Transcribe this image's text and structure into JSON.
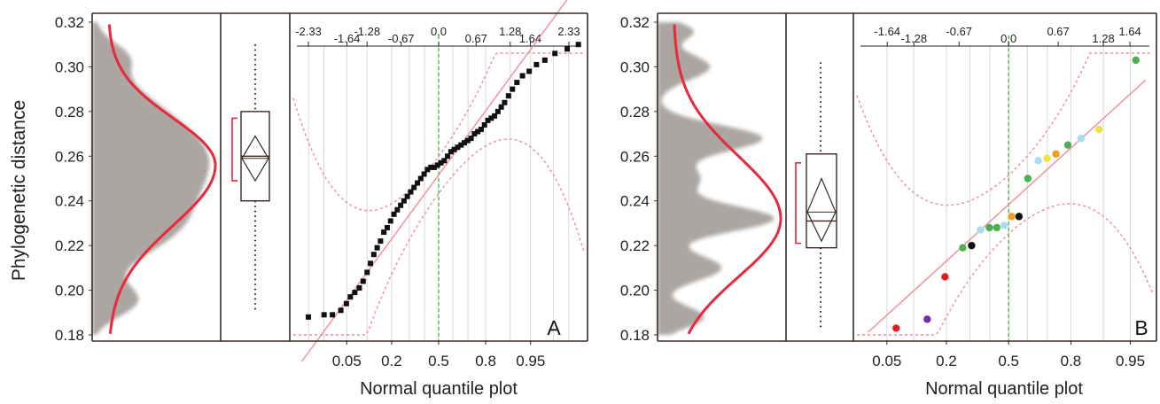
{
  "figure": {
    "y_axis_label": "Phylogenetic distance",
    "x_axis_label": "Normal quantile plot",
    "y_ticks": [
      "0.32",
      "0.30",
      "0.28",
      "0.26",
      "0.24",
      "0.22",
      "0.20",
      "0.18"
    ]
  },
  "colors": {
    "density_fill": "#a8a29e",
    "density_curve": "#e8283c",
    "frame": "#3a2a22",
    "ref_line": "#f08c96",
    "mean_line": "#3aa83a",
    "points_A": "#111111",
    "grid": "#d8d8d8"
  },
  "chart_data": [
    {
      "panel": "A",
      "type": "scatter",
      "panel_label": "A",
      "title": "",
      "ylabel": "Phylogenetic distance",
      "xlabel": "Normal quantile plot",
      "ylim": [
        0.18,
        0.32
      ],
      "bottom_prob_ticks": [
        "0.05",
        "0.2",
        "0.5",
        "0.8",
        "0.95"
      ],
      "top_z_ticks": [
        "-2.33",
        "-1.64",
        "-1.28",
        "-0.67",
        "0.0",
        "0.67",
        "1.28",
        "1.64",
        "2.33"
      ],
      "boxplot": {
        "q1": 0.24,
        "median": 0.26,
        "q3": 0.28,
        "whisker_low": 0.19,
        "whisker_high": 0.31,
        "mean": 0.259,
        "mean_ci": [
          0.249,
          0.269
        ],
        "shortest_half": [
          0.249,
          0.277
        ]
      },
      "density_curve": {
        "mode": 0.256
      },
      "points": [
        {
          "z": -2.33,
          "y": 0.188
        },
        {
          "z": -2.05,
          "y": 0.189
        },
        {
          "z": -1.9,
          "y": 0.189
        },
        {
          "z": -1.75,
          "y": 0.191
        },
        {
          "z": -1.65,
          "y": 0.194
        },
        {
          "z": -1.58,
          "y": 0.197
        },
        {
          "z": -1.5,
          "y": 0.199
        },
        {
          "z": -1.42,
          "y": 0.201
        },
        {
          "z": -1.35,
          "y": 0.204
        },
        {
          "z": -1.28,
          "y": 0.208
        },
        {
          "z": -1.22,
          "y": 0.212
        },
        {
          "z": -1.16,
          "y": 0.216
        },
        {
          "z": -1.1,
          "y": 0.219
        },
        {
          "z": -1.04,
          "y": 0.222
        },
        {
          "z": -0.98,
          "y": 0.226
        },
        {
          "z": -0.92,
          "y": 0.228
        },
        {
          "z": -0.86,
          "y": 0.231
        },
        {
          "z": -0.8,
          "y": 0.234
        },
        {
          "z": -0.74,
          "y": 0.236
        },
        {
          "z": -0.68,
          "y": 0.238
        },
        {
          "z": -0.62,
          "y": 0.24
        },
        {
          "z": -0.56,
          "y": 0.242
        },
        {
          "z": -0.5,
          "y": 0.244
        },
        {
          "z": -0.44,
          "y": 0.246
        },
        {
          "z": -0.38,
          "y": 0.248
        },
        {
          "z": -0.32,
          "y": 0.25
        },
        {
          "z": -0.26,
          "y": 0.252
        },
        {
          "z": -0.2,
          "y": 0.254
        },
        {
          "z": -0.14,
          "y": 0.255
        },
        {
          "z": -0.08,
          "y": 0.255
        },
        {
          "z": -0.02,
          "y": 0.256
        },
        {
          "z": 0.04,
          "y": 0.257
        },
        {
          "z": 0.1,
          "y": 0.258
        },
        {
          "z": 0.16,
          "y": 0.26
        },
        {
          "z": 0.22,
          "y": 0.262
        },
        {
          "z": 0.28,
          "y": 0.263
        },
        {
          "z": 0.34,
          "y": 0.264
        },
        {
          "z": 0.4,
          "y": 0.265
        },
        {
          "z": 0.46,
          "y": 0.266
        },
        {
          "z": 0.52,
          "y": 0.267
        },
        {
          "z": 0.58,
          "y": 0.268
        },
        {
          "z": 0.64,
          "y": 0.27
        },
        {
          "z": 0.7,
          "y": 0.271
        },
        {
          "z": 0.76,
          "y": 0.272
        },
        {
          "z": 0.82,
          "y": 0.274
        },
        {
          "z": 0.88,
          "y": 0.276
        },
        {
          "z": 0.94,
          "y": 0.277
        },
        {
          "z": 1.0,
          "y": 0.278
        },
        {
          "z": 1.06,
          "y": 0.28
        },
        {
          "z": 1.12,
          "y": 0.282
        },
        {
          "z": 1.18,
          "y": 0.284
        },
        {
          "z": 1.25,
          "y": 0.287
        },
        {
          "z": 1.32,
          "y": 0.29
        },
        {
          "z": 1.4,
          "y": 0.293
        },
        {
          "z": 1.5,
          "y": 0.296
        },
        {
          "z": 1.62,
          "y": 0.298
        },
        {
          "z": 1.75,
          "y": 0.301
        },
        {
          "z": 1.9,
          "y": 0.303
        },
        {
          "z": 2.08,
          "y": 0.306
        },
        {
          "z": 2.3,
          "y": 0.308
        },
        {
          "z": 2.5,
          "y": 0.31
        }
      ]
    },
    {
      "panel": "B",
      "type": "scatter",
      "panel_label": "B",
      "title": "",
      "ylabel": "Phylogenetic distance",
      "xlabel": "Normal quantile plot",
      "ylim": [
        0.18,
        0.32
      ],
      "bottom_prob_ticks": [
        "0.05",
        "0.2",
        "0.5",
        "0.8",
        "0.95"
      ],
      "top_z_ticks": [
        "-1.64",
        "-1.28",
        "-0.67",
        "0.0",
        "0.67",
        "1.28",
        "1.64"
      ],
      "boxplot": {
        "q1": 0.219,
        "median": 0.231,
        "q3": 0.261,
        "whisker_low": 0.182,
        "whisker_high": 0.302,
        "mean": 0.235,
        "mean_ci": [
          0.222,
          0.25
        ],
        "shortest_half": [
          0.221,
          0.257
        ]
      },
      "density_curve": {
        "mode": 0.232
      },
      "points": [
        {
          "z": -1.52,
          "y": 0.183,
          "color": "#e02020"
        },
        {
          "z": -1.1,
          "y": 0.187,
          "color": "#7030a0"
        },
        {
          "z": -0.86,
          "y": 0.206,
          "color": "#e02020"
        },
        {
          "z": -0.62,
          "y": 0.219,
          "color": "#4caf50"
        },
        {
          "z": -0.5,
          "y": 0.22,
          "color": "#111111"
        },
        {
          "z": -0.38,
          "y": 0.227,
          "color": "#a8dcf0"
        },
        {
          "z": -0.26,
          "y": 0.228,
          "color": "#4caf50"
        },
        {
          "z": -0.16,
          "y": 0.228,
          "color": "#4caf50"
        },
        {
          "z": -0.06,
          "y": 0.229,
          "color": "#a8dcf0"
        },
        {
          "z": 0.04,
          "y": 0.233,
          "color": "#f0a020"
        },
        {
          "z": 0.14,
          "y": 0.233,
          "color": "#111111"
        },
        {
          "z": 0.26,
          "y": 0.25,
          "color": "#4caf50"
        },
        {
          "z": 0.4,
          "y": 0.258,
          "color": "#a8dcf0"
        },
        {
          "z": 0.52,
          "y": 0.259,
          "color": "#f0e040"
        },
        {
          "z": 0.64,
          "y": 0.261,
          "color": "#f0a020"
        },
        {
          "z": 0.8,
          "y": 0.265,
          "color": "#4caf50"
        },
        {
          "z": 0.98,
          "y": 0.268,
          "color": "#a8dcf0"
        },
        {
          "z": 1.22,
          "y": 0.272,
          "color": "#f0e040"
        },
        {
          "z": 1.72,
          "y": 0.303,
          "color": "#4caf50"
        }
      ]
    }
  ]
}
